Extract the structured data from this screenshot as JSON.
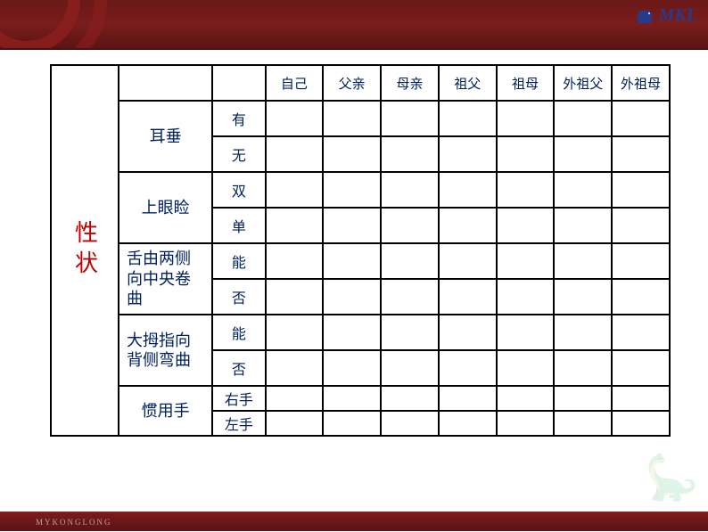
{
  "header": {
    "logo_text": "MKL"
  },
  "footer": {
    "text": "MYKONGLONG"
  },
  "table": {
    "category_label": "性状",
    "category_color": "#c00000",
    "cell_text_color": "#002060",
    "border_color": "#000000",
    "person_headers": [
      "自己",
      "父亲",
      "母亲",
      "祖父",
      "祖母",
      "外祖父",
      "外祖母"
    ],
    "traits": [
      {
        "label": "耳垂",
        "options": [
          "有",
          "无"
        ],
        "align": "center"
      },
      {
        "label": "上眼睑",
        "options": [
          "双",
          "单"
        ],
        "align": "center"
      },
      {
        "label": "舌由两侧向中央卷曲",
        "options": [
          "能",
          "否"
        ],
        "align": "left"
      },
      {
        "label": "大拇指向背侧弯曲",
        "options": [
          "能",
          "否"
        ],
        "align": "left"
      },
      {
        "label": "惯用手",
        "options": [
          "右手",
          "左手"
        ],
        "align": "center",
        "short": true
      }
    ]
  }
}
